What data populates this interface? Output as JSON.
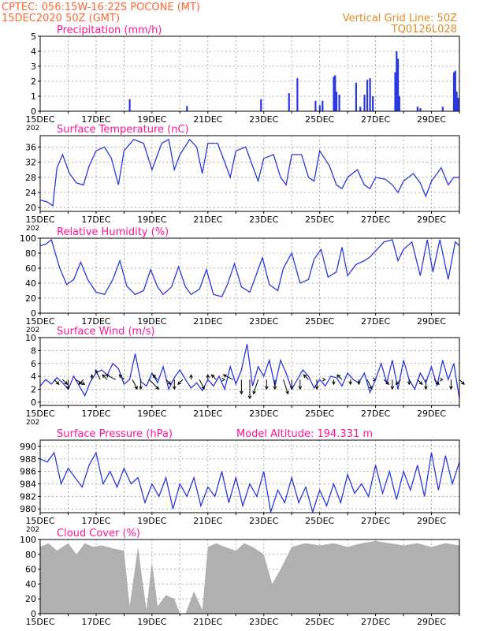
{
  "header": {
    "line1": "CPTEC:   056:15W-16:22S   POCONE (MT)",
    "line2": "15DEC2020 50Z (GMT)",
    "grid_note": "Vertical Grid Line: 50Z",
    "code": "TQ0126L028"
  },
  "colors": {
    "header_left": "#ff6633",
    "header_right": "#e38a20",
    "panel_title": "#ff1493",
    "series": "#2a38e0",
    "cloud": "#b0b0b0",
    "grid": "#9a9a9a",
    "axis": "#000000"
  },
  "day_axis": {
    "xlim_days": [
      15,
      30
    ],
    "labeled_days": [
      "15DEC",
      "17DEC",
      "19DEC",
      "21DEC",
      "23DEC",
      "25DEC",
      "27DEC",
      "29DEC"
    ],
    "labeled_positions": [
      15,
      17,
      19,
      21,
      23,
      25,
      27,
      29
    ],
    "year_fragment": "202"
  },
  "chart_data": [
    {
      "id": "precip",
      "type": "bar",
      "title": "Precipitation (mm/h)",
      "unit": "mm/h",
      "ylim": [
        0,
        5
      ],
      "yticks": [
        0,
        1,
        2,
        3,
        4,
        5
      ],
      "grid": true,
      "x_day": [
        18.2,
        20.25,
        22.9,
        23.9,
        24.2,
        24.85,
        25.0,
        25.1,
        25.5,
        25.55,
        25.6,
        25.7,
        26.3,
        26.45,
        26.6,
        26.7,
        26.8,
        26.9,
        27.7,
        27.75,
        27.8,
        27.85,
        28.5,
        28.6,
        29.4,
        29.8,
        29.85,
        29.9,
        29.95
      ],
      "values": [
        0.8,
        0.35,
        0.8,
        1.2,
        2.2,
        0.7,
        0.4,
        0.7,
        2.3,
        2.4,
        1.3,
        1.1,
        1.9,
        0.3,
        1.1,
        2.1,
        2.2,
        1.0,
        2.6,
        4.0,
        3.5,
        1.0,
        0.3,
        0.2,
        0.3,
        2.6,
        2.7,
        1.3,
        0.9
      ]
    },
    {
      "id": "temp",
      "type": "line",
      "title": "Surface Temperature (nC)",
      "unit": "nC",
      "ylim": [
        19,
        39
      ],
      "yticks": [
        20,
        24,
        28,
        32,
        36
      ],
      "grid": true,
      "x_day": [
        15.0,
        15.25,
        15.45,
        15.6,
        15.8,
        16.05,
        16.3,
        16.55,
        16.75,
        17.0,
        17.3,
        17.55,
        17.8,
        18.0,
        18.35,
        18.7,
        19.0,
        19.35,
        19.6,
        19.8,
        20.0,
        20.35,
        20.6,
        20.8,
        21.0,
        21.35,
        21.6,
        21.8,
        22.0,
        22.35,
        22.6,
        22.8,
        23.0,
        23.35,
        23.6,
        23.8,
        24.0,
        24.35,
        24.6,
        24.8,
        25.0,
        25.35,
        25.6,
        25.8,
        26.0,
        26.35,
        26.6,
        26.8,
        27.0,
        27.35,
        27.6,
        27.8,
        28.0,
        28.35,
        28.6,
        28.8,
        29.0,
        29.35,
        29.6,
        29.8,
        30.0
      ],
      "values": [
        22,
        21.5,
        20.5,
        30.5,
        34,
        29,
        26.5,
        26,
        31,
        35,
        36,
        33,
        26,
        35,
        38,
        37,
        30,
        37,
        38,
        30,
        34,
        38,
        36,
        29,
        37,
        37,
        32,
        28,
        35,
        36,
        31,
        27,
        33,
        34,
        28,
        26,
        34,
        34,
        28,
        27,
        35,
        31,
        26,
        25,
        28,
        30,
        26,
        25,
        28,
        27.5,
        26,
        24,
        27,
        29,
        26.5,
        23,
        27,
        30.5,
        26,
        28,
        28
      ]
    },
    {
      "id": "rh",
      "type": "line",
      "title": "Relative Humidity (%)",
      "unit": "%",
      "ylim": [
        0,
        100
      ],
      "yticks": [
        0,
        20,
        40,
        60,
        80,
        100
      ],
      "grid": true,
      "x_day": [
        15.0,
        15.2,
        15.4,
        15.7,
        15.95,
        16.2,
        16.45,
        16.7,
        17.0,
        17.3,
        17.6,
        17.85,
        18.1,
        18.4,
        18.7,
        18.95,
        19.2,
        19.4,
        19.7,
        19.95,
        20.2,
        20.4,
        20.7,
        20.95,
        21.2,
        21.5,
        21.7,
        21.95,
        22.2,
        22.5,
        22.7,
        22.95,
        23.2,
        23.5,
        23.7,
        24.0,
        24.3,
        24.6,
        24.8,
        25.05,
        25.3,
        25.6,
        25.8,
        26.0,
        26.3,
        26.6,
        26.8,
        27.05,
        27.3,
        27.6,
        27.8,
        28.0,
        28.3,
        28.6,
        28.85,
        29.05,
        29.3,
        29.6,
        29.85,
        30.0
      ],
      "values": [
        90,
        92,
        98,
        60,
        38,
        45,
        68,
        45,
        28,
        25,
        45,
        70,
        36,
        25,
        30,
        58,
        35,
        25,
        35,
        62,
        35,
        25,
        32,
        58,
        25,
        22,
        38,
        66,
        35,
        28,
        48,
        74,
        38,
        30,
        60,
        80,
        40,
        45,
        72,
        85,
        48,
        55,
        88,
        50,
        65,
        70,
        75,
        85,
        95,
        98,
        70,
        85,
        95,
        50,
        98,
        55,
        98,
        45,
        95,
        90
      ]
    },
    {
      "id": "wind",
      "type": "line",
      "title": "Surface Wind (m/s)",
      "unit": "m/s",
      "ylim": [
        -0.5,
        10
      ],
      "yticks": [
        0,
        2,
        4,
        6,
        8,
        10
      ],
      "grid": true,
      "x_day": [
        15.0,
        15.2,
        15.4,
        15.6,
        15.8,
        16.0,
        16.2,
        16.4,
        16.6,
        16.8,
        17.0,
        17.2,
        17.4,
        17.6,
        17.8,
        18.0,
        18.2,
        18.4,
        18.6,
        18.8,
        19.0,
        19.2,
        19.4,
        19.6,
        19.8,
        20.0,
        20.2,
        20.4,
        20.6,
        20.8,
        21.0,
        21.2,
        21.4,
        21.6,
        21.8,
        22.0,
        22.2,
        22.4,
        22.6,
        22.8,
        23.0,
        23.2,
        23.4,
        23.6,
        23.8,
        24.0,
        24.2,
        24.4,
        24.6,
        24.8,
        25.0,
        25.2,
        25.4,
        25.6,
        25.8,
        26.0,
        26.2,
        26.4,
        26.6,
        26.8,
        27.0,
        27.2,
        27.4,
        27.6,
        27.8,
        28.0,
        28.2,
        28.4,
        28.6,
        28.8,
        29.0,
        29.2,
        29.4,
        29.6,
        29.8,
        30.0
      ],
      "values": [
        2.5,
        3.5,
        2.8,
        3.8,
        3.0,
        2.0,
        4.0,
        2.5,
        1.0,
        3.2,
        4.5,
        5.0,
        4.2,
        6.0,
        5.2,
        2.8,
        3.5,
        7.5,
        3.2,
        2.5,
        4.5,
        3.0,
        5.5,
        2.0,
        3.8,
        5.0,
        3.5,
        2.2,
        3.0,
        1.8,
        3.5,
        2.5,
        4.0,
        2.0,
        5.5,
        2.8,
        5.0,
        9.0,
        2.5,
        5.5,
        4.0,
        6.5,
        2.5,
        6.5,
        4.5,
        2.0,
        3.5,
        5.0,
        4.0,
        2.2,
        3.5,
        2.5,
        4.0,
        3.8,
        2.5,
        4.5,
        3.5,
        3.0,
        4.5,
        1.5,
        3.5,
        6.0,
        3.0,
        6.5,
        2.0,
        6.5,
        3.5,
        2.0,
        4.5,
        3.0,
        5.5,
        2.5,
        6.5,
        3.5,
        6.0,
        0.5
      ],
      "vectors": {
        "x_day": [
          15.5,
          15.8,
          16.0,
          16.25,
          16.55,
          16.85,
          17.15,
          17.4,
          17.7,
          18.0,
          18.3,
          18.6,
          18.9,
          19.2,
          19.5,
          19.8,
          20.1,
          20.4,
          20.7,
          21.0,
          21.3,
          21.6,
          21.9,
          22.2,
          22.5,
          22.8,
          23.1,
          23.4,
          23.7,
          24.0,
          24.3,
          24.6,
          24.9,
          25.2,
          25.5,
          25.8,
          26.1,
          26.4,
          26.7,
          27.0,
          27.3,
          27.6,
          27.9,
          28.2,
          28.5,
          28.8,
          29.1,
          29.4,
          29.7,
          30.0
        ],
        "u": [
          1,
          1,
          0,
          2,
          -1,
          0,
          -1,
          -1,
          -2,
          -1,
          1,
          0,
          2,
          -1,
          1,
          0,
          -1,
          0,
          1,
          0,
          -1,
          0,
          -2,
          0,
          0,
          -1,
          0,
          0,
          1,
          0,
          0,
          -1,
          0,
          0,
          0,
          -1,
          0,
          0,
          1,
          0,
          1,
          0,
          -1,
          0,
          1,
          0,
          1,
          0,
          0,
          1
        ],
        "v": [
          -1,
          -1,
          -2,
          -1,
          -1,
          1,
          2,
          1,
          1,
          1,
          -2,
          -2,
          -2,
          1,
          -1,
          -2,
          -1,
          1,
          -2,
          1,
          1,
          0,
          1,
          -3,
          -4,
          -3,
          -2,
          -2,
          -3,
          -2,
          -2,
          1,
          -2,
          0,
          -1,
          1,
          -1,
          -1,
          -2,
          0,
          -1,
          -2,
          -1,
          -1,
          -1,
          -2,
          -1,
          0,
          -2,
          -1
        ]
      }
    },
    {
      "id": "pressure",
      "type": "line",
      "title": "Surface Pressure (hPa)",
      "unit": "hPa",
      "annotation": "Model Altitude: 194.331  m",
      "ylim": [
        979.4,
        991
      ],
      "yticks": [
        980,
        982,
        984,
        986,
        988,
        990
      ],
      "grid": true,
      "x_day": [
        15.0,
        15.25,
        15.5,
        15.75,
        16.0,
        16.25,
        16.5,
        16.75,
        17.0,
        17.25,
        17.5,
        17.75,
        18.0,
        18.25,
        18.5,
        18.75,
        19.0,
        19.25,
        19.5,
        19.75,
        20.0,
        20.25,
        20.5,
        20.75,
        21.0,
        21.25,
        21.5,
        21.75,
        22.0,
        22.25,
        22.5,
        22.75,
        23.0,
        23.25,
        23.5,
        23.75,
        24.0,
        24.25,
        24.5,
        24.75,
        25.0,
        25.25,
        25.5,
        25.75,
        26.0,
        26.25,
        26.5,
        26.75,
        27.0,
        27.25,
        27.5,
        27.75,
        28.0,
        28.25,
        28.5,
        28.75,
        29.0,
        29.25,
        29.5,
        29.75,
        30.0
      ],
      "values": [
        988,
        987.5,
        989,
        984,
        986.5,
        985,
        983.5,
        987,
        989,
        984,
        986,
        983.5,
        986.5,
        984,
        985,
        981,
        984,
        982,
        985,
        980,
        984,
        982,
        985,
        980.5,
        983.5,
        982,
        986,
        981,
        985,
        980.5,
        984,
        982,
        986,
        979.5,
        983,
        981,
        985,
        981,
        983.5,
        979.5,
        983,
        980.5,
        984,
        981,
        985.5,
        982.5,
        984,
        982,
        987,
        982.5,
        986,
        981.5,
        986,
        983,
        987,
        982,
        989,
        983,
        988.5,
        984,
        987.5
      ]
    },
    {
      "id": "cloud",
      "type": "area",
      "title": "Cloud Cover (%)",
      "unit": "%",
      "ylim": [
        0,
        100
      ],
      "yticks": [
        0,
        20,
        40,
        60,
        80,
        100
      ],
      "grid": true,
      "x_day": [
        15.0,
        15.3,
        15.6,
        16.0,
        16.3,
        16.6,
        16.9,
        17.2,
        17.6,
        18.0,
        18.2,
        18.5,
        18.8,
        19.0,
        19.2,
        19.5,
        19.8,
        20.0,
        20.2,
        20.5,
        20.8,
        21.0,
        21.3,
        21.6,
        22.0,
        22.3,
        22.6,
        23.0,
        23.3,
        23.6,
        24.0,
        24.5,
        25.0,
        25.5,
        26.0,
        26.5,
        27.0,
        27.5,
        28.0,
        28.5,
        29.0,
        29.5,
        30.0
      ],
      "values": [
        90,
        95,
        85,
        95,
        80,
        95,
        90,
        92,
        88,
        85,
        10,
        90,
        5,
        70,
        10,
        25,
        20,
        0,
        0,
        30,
        5,
        90,
        95,
        90,
        85,
        95,
        90,
        80,
        40,
        60,
        90,
        95,
        92,
        95,
        90,
        95,
        98,
        95,
        92,
        95,
        90,
        95,
        92
      ]
    }
  ]
}
